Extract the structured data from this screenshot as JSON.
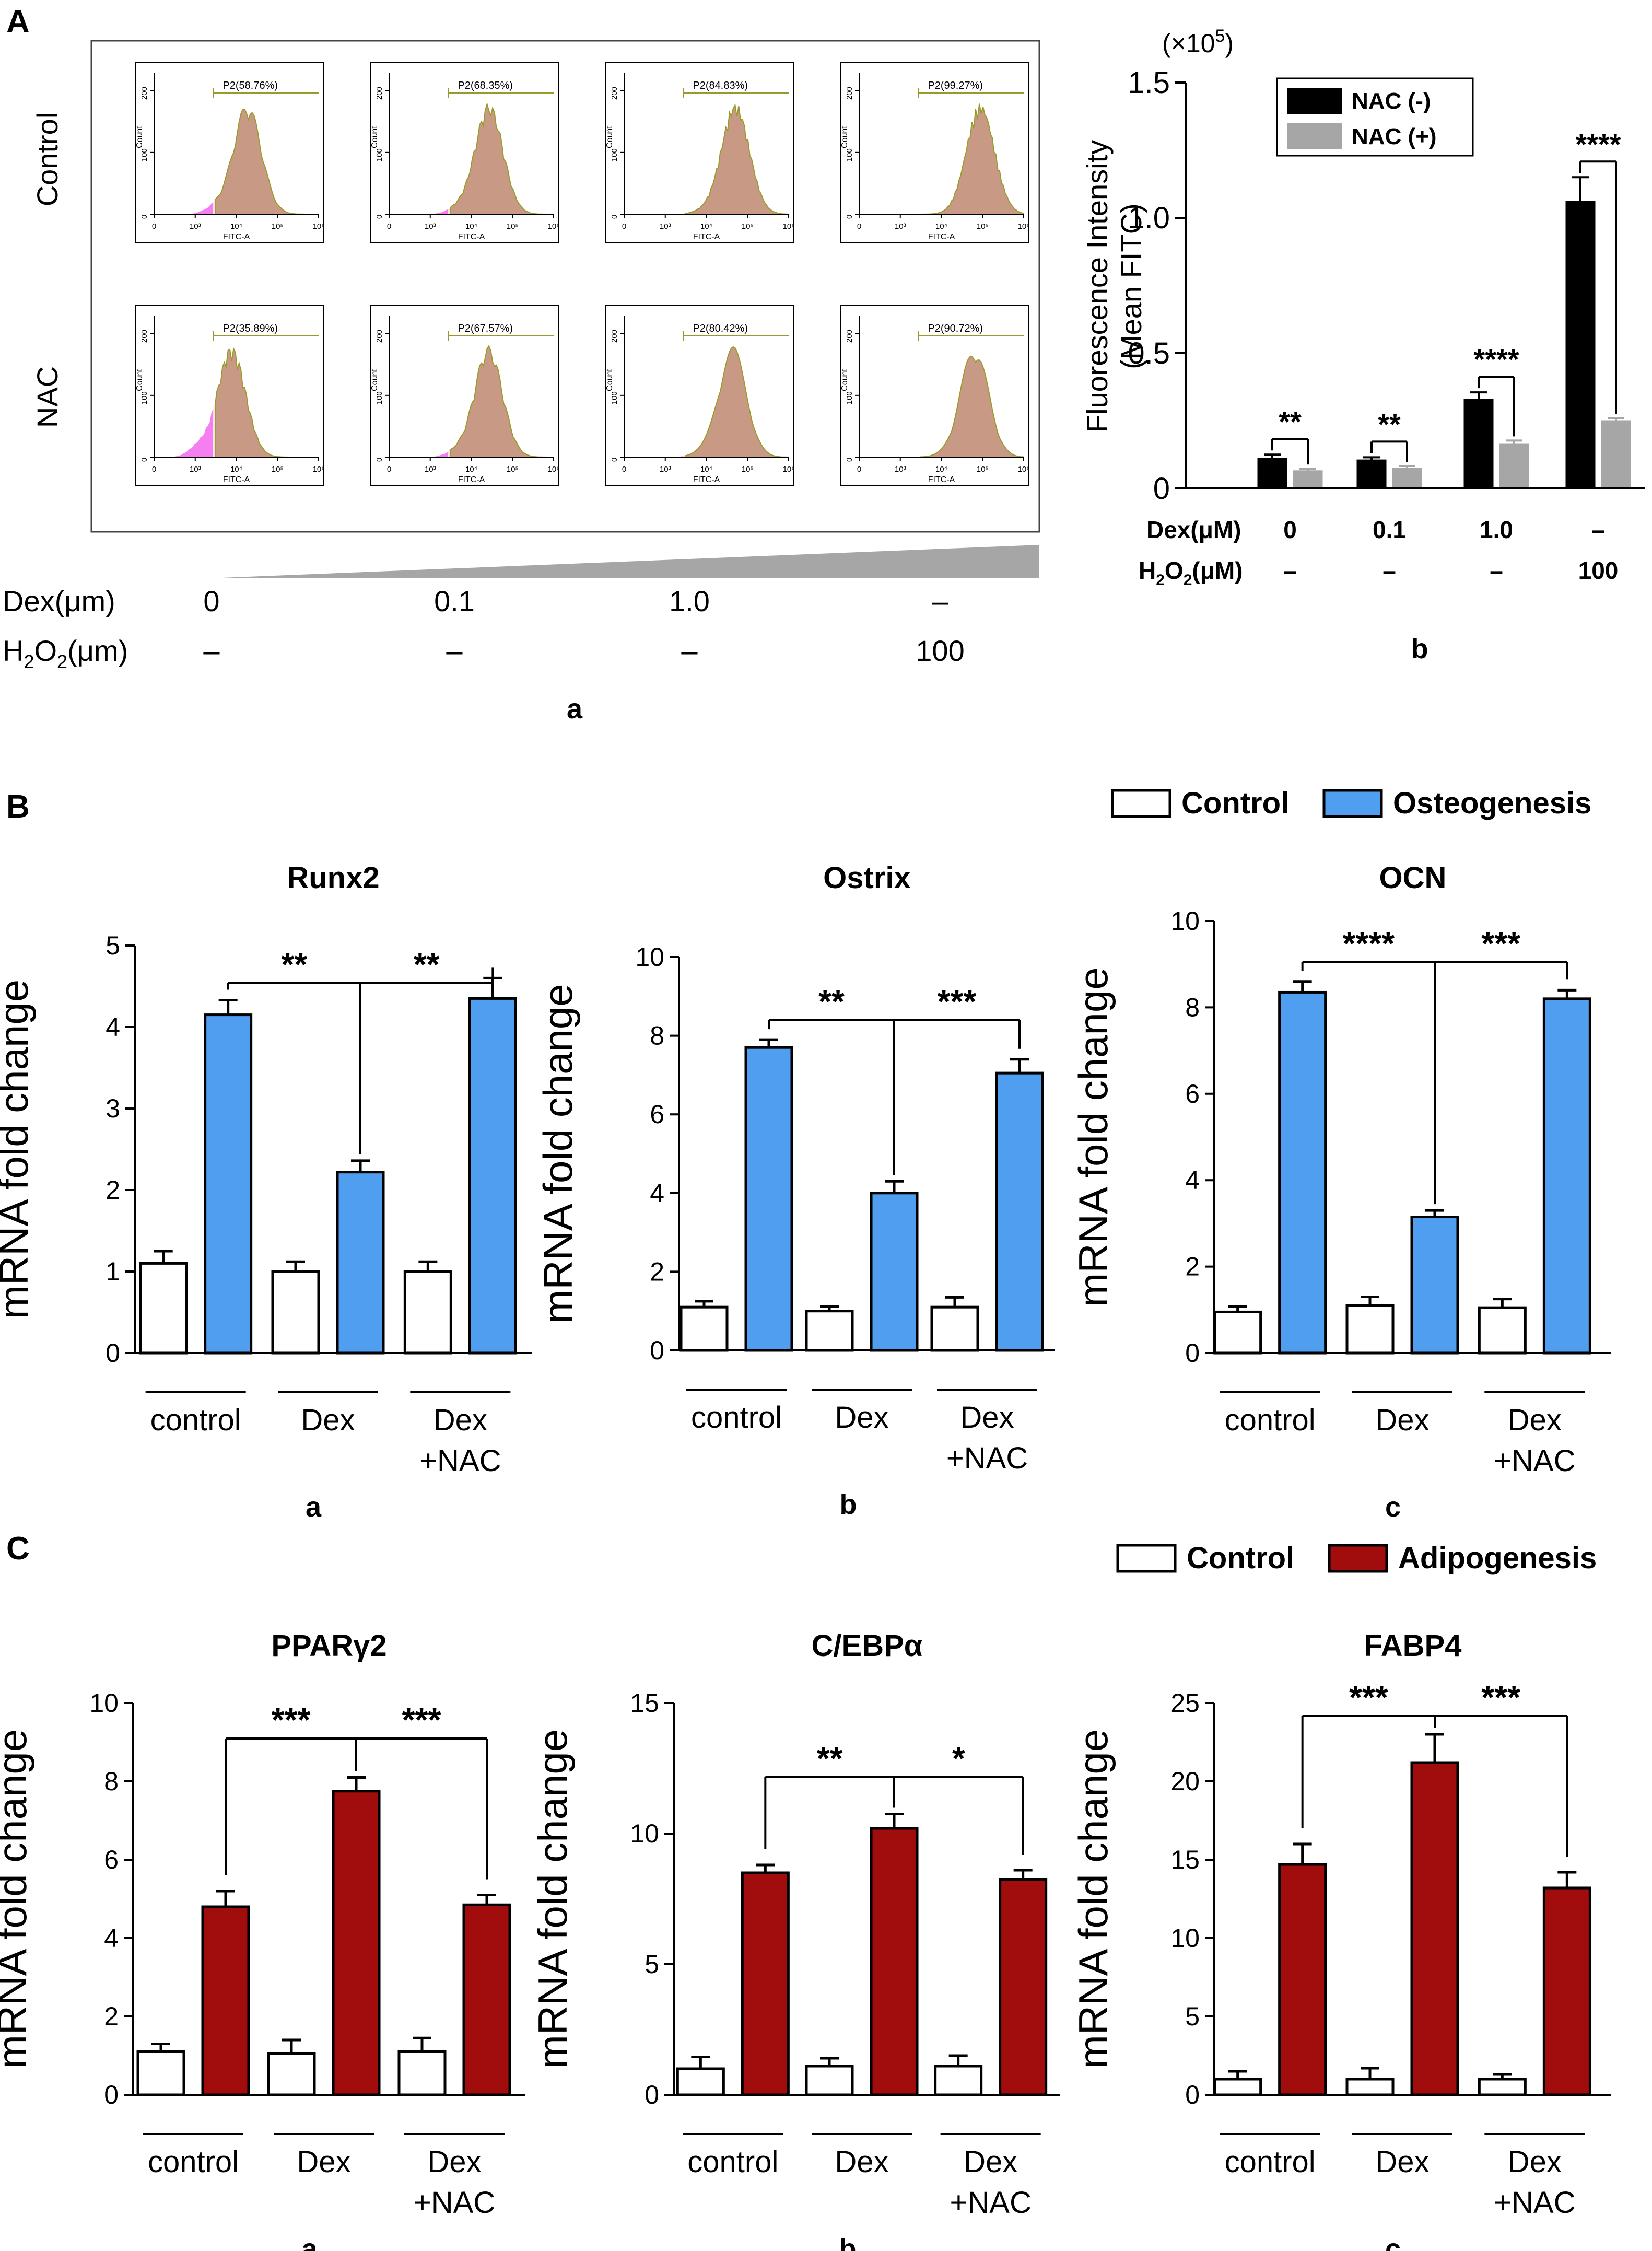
{
  "figure": {
    "panel_A": {
      "letter": "A",
      "flow": {
        "row_labels": [
          "Control",
          "NAC"
        ],
        "x_axis_label": "FITC-A",
        "y_axis_label": "Count",
        "y_ticks": [
          "0",
          "100",
          "200"
        ],
        "x_ticks": [
          "0",
          "10³",
          "10⁴",
          "10⁵",
          "10⁶"
        ],
        "gates": [
          [
            "P2(58.76%)",
            "P2(68.35%)",
            "P2(84.83%)",
            "P2(99.27%)"
          ],
          [
            "P2(35.89%)",
            "P2(67.57%)",
            "P2(80.42%)",
            "P2(90.72%)"
          ]
        ],
        "gate_fraction": [
          [
            0.5876,
            0.6835,
            0.8483,
            0.9927
          ],
          [
            0.3589,
            0.6757,
            0.8042,
            0.9072
          ]
        ],
        "colors": {
          "negative": "#f57ff0",
          "positive": "#c89a86",
          "outline": "#9a9a2a"
        },
        "dex_label": "Dex(μm)",
        "h2o2_label": "H",
        "h2o2_sub": "2",
        "h2o2_rest": "O",
        "h2o2_sub2": "2",
        "h2o2_unit": "(μm)",
        "dex_values": [
          "0",
          "0.1",
          "1.0",
          "–"
        ],
        "h2o2_values": [
          "–",
          "–",
          "–",
          "100"
        ],
        "sub_label": "a"
      },
      "bar": {
        "scale_label": "(×10",
        "scale_exp": "5",
        "scale_close": ")",
        "ylabel_line1": "Fluorescence Intensity",
        "ylabel_line2": "(Mean FITC)",
        "legend": [
          "NAC (-)",
          "NAC (+)"
        ],
        "dex_label": "Dex(μM)",
        "h2o2_label": "H",
        "h2o2_sub": "2",
        "h2o2_rest": "O",
        "h2o2_sub2": "2",
        "h2o2_unit": "(μM)",
        "dex_values": [
          "0",
          "0.1",
          "1.0",
          "–"
        ],
        "h2o2_values": [
          "–",
          "–",
          "–",
          "100"
        ],
        "sub_label": "b"
      }
    },
    "panel_B": {
      "letter": "B",
      "legend": [
        "Control",
        "Osteogenesis"
      ],
      "color": "#4f9ef0"
    },
    "panel_C": {
      "letter": "C",
      "legend": [
        "Control",
        "Adipogenesis"
      ],
      "color": "#a10d0d"
    },
    "xgroups": [
      "control",
      "Dex",
      "Dex",
      "+NAC"
    ]
  },
  "chart_data": [
    {
      "id": "A-b",
      "type": "bar",
      "title": "",
      "ylabel": "Fluorescence Intensity (Mean FITC) (×10^5)",
      "ylim": [
        0,
        1.5
      ],
      "yticks": [
        "0",
        "0.5",
        "1.0",
        "1.5"
      ],
      "categories": [
        "0",
        "0.1",
        "1.0",
        "100 H2O2"
      ],
      "series": [
        {
          "name": "NAC (-)",
          "color": "#000000",
          "values": [
            0.11,
            0.105,
            0.33,
            1.06
          ],
          "errors": [
            0.015,
            0.01,
            0.025,
            0.09
          ]
        },
        {
          "name": "NAC (+)",
          "color": "#a6a6a6",
          "values": [
            0.065,
            0.075,
            0.165,
            0.25
          ],
          "errors": [
            0.008,
            0.008,
            0.012,
            0.01
          ]
        }
      ],
      "significance": [
        "**",
        "**",
        "****",
        "****"
      ]
    },
    {
      "id": "B-a",
      "type": "bar",
      "title": "Runx2",
      "ylabel": "mRNA fold change",
      "ylim": [
        0,
        5
      ],
      "yticks": [
        "0",
        "1",
        "2",
        "3",
        "4",
        "5"
      ],
      "categories": [
        "control",
        "Dex",
        "Dex +NAC"
      ],
      "series": [
        {
          "name": "Control",
          "values": [
            1.1,
            1.0,
            1.0
          ],
          "errors": [
            0.15,
            0.12,
            0.12
          ]
        },
        {
          "name": "Osteogenesis",
          "values": [
            4.15,
            2.22,
            4.35
          ],
          "errors": [
            0.18,
            0.14,
            0.25
          ]
        }
      ],
      "significance": [
        "**",
        "**"
      ],
      "sub_label": "a"
    },
    {
      "id": "B-b",
      "type": "bar",
      "title": "Ostrix",
      "ylabel": "mRNA fold change",
      "ylim": [
        0,
        10
      ],
      "yticks": [
        "0",
        "2",
        "4",
        "6",
        "8",
        "10"
      ],
      "categories": [
        "control",
        "Dex",
        "Dex +NAC"
      ],
      "series": [
        {
          "name": "Control",
          "values": [
            1.1,
            1.0,
            1.1
          ],
          "errors": [
            0.15,
            0.12,
            0.25
          ]
        },
        {
          "name": "Osteogenesis",
          "values": [
            7.7,
            4.0,
            7.05
          ],
          "errors": [
            0.2,
            0.3,
            0.35
          ]
        }
      ],
      "significance": [
        "**",
        "***"
      ],
      "sub_label": "b"
    },
    {
      "id": "B-c",
      "type": "bar",
      "title": "OCN",
      "ylabel": "mRNA fold change",
      "ylim": [
        0,
        10
      ],
      "yticks": [
        "0",
        "2",
        "4",
        "6",
        "8",
        "10"
      ],
      "categories": [
        "control",
        "Dex",
        "Dex +NAC"
      ],
      "series": [
        {
          "name": "Control",
          "values": [
            0.95,
            1.1,
            1.05
          ],
          "errors": [
            0.12,
            0.2,
            0.2
          ]
        },
        {
          "name": "Osteogenesis",
          "values": [
            8.35,
            3.15,
            8.2
          ],
          "errors": [
            0.25,
            0.15,
            0.2
          ]
        }
      ],
      "significance": [
        "****",
        "***"
      ],
      "sub_label": "c"
    },
    {
      "id": "C-a",
      "type": "bar",
      "title": "PPARγ2",
      "ylabel": "mRNA fold change",
      "ylim": [
        0,
        10
      ],
      "yticks": [
        "0",
        "2",
        "4",
        "6",
        "8",
        "10"
      ],
      "categories": [
        "control",
        "Dex",
        "Dex +NAC"
      ],
      "series": [
        {
          "name": "Control",
          "values": [
            1.1,
            1.05,
            1.1
          ],
          "errors": [
            0.2,
            0.35,
            0.35
          ]
        },
        {
          "name": "Adipogenesis",
          "values": [
            4.8,
            7.75,
            4.85
          ],
          "errors": [
            0.4,
            0.35,
            0.25
          ]
        }
      ],
      "significance": [
        "***",
        "***"
      ],
      "sub_label": "a"
    },
    {
      "id": "C-b",
      "type": "bar",
      "title": "C/EBPα",
      "ylabel": "mRNA fold change",
      "ylim": [
        0,
        15
      ],
      "yticks": [
        "0",
        "5",
        "10",
        "15"
      ],
      "categories": [
        "control",
        "Dex",
        "Dex +NAC"
      ],
      "series": [
        {
          "name": "Control",
          "values": [
            1.0,
            1.1,
            1.1
          ],
          "errors": [
            0.45,
            0.3,
            0.4
          ]
        },
        {
          "name": "Adipogenesis",
          "values": [
            8.5,
            10.2,
            8.25
          ],
          "errors": [
            0.3,
            0.55,
            0.35
          ]
        }
      ],
      "significance": [
        "**",
        "*"
      ],
      "sub_label": "b"
    },
    {
      "id": "C-c",
      "type": "bar",
      "title": "FABP4",
      "ylabel": "mRNA fold change",
      "ylim": [
        0,
        25
      ],
      "yticks": [
        "0",
        "5",
        "10",
        "15",
        "20",
        "25"
      ],
      "categories": [
        "control",
        "Dex",
        "Dex +NAC"
      ],
      "series": [
        {
          "name": "Control",
          "values": [
            1.0,
            1.0,
            1.0
          ],
          "errors": [
            0.5,
            0.7,
            0.3
          ]
        },
        {
          "name": "Adipogenesis",
          "values": [
            14.7,
            21.2,
            13.2
          ],
          "errors": [
            1.3,
            1.8,
            1.0
          ]
        }
      ],
      "significance": [
        "***",
        "***"
      ],
      "sub_label": "c"
    }
  ]
}
